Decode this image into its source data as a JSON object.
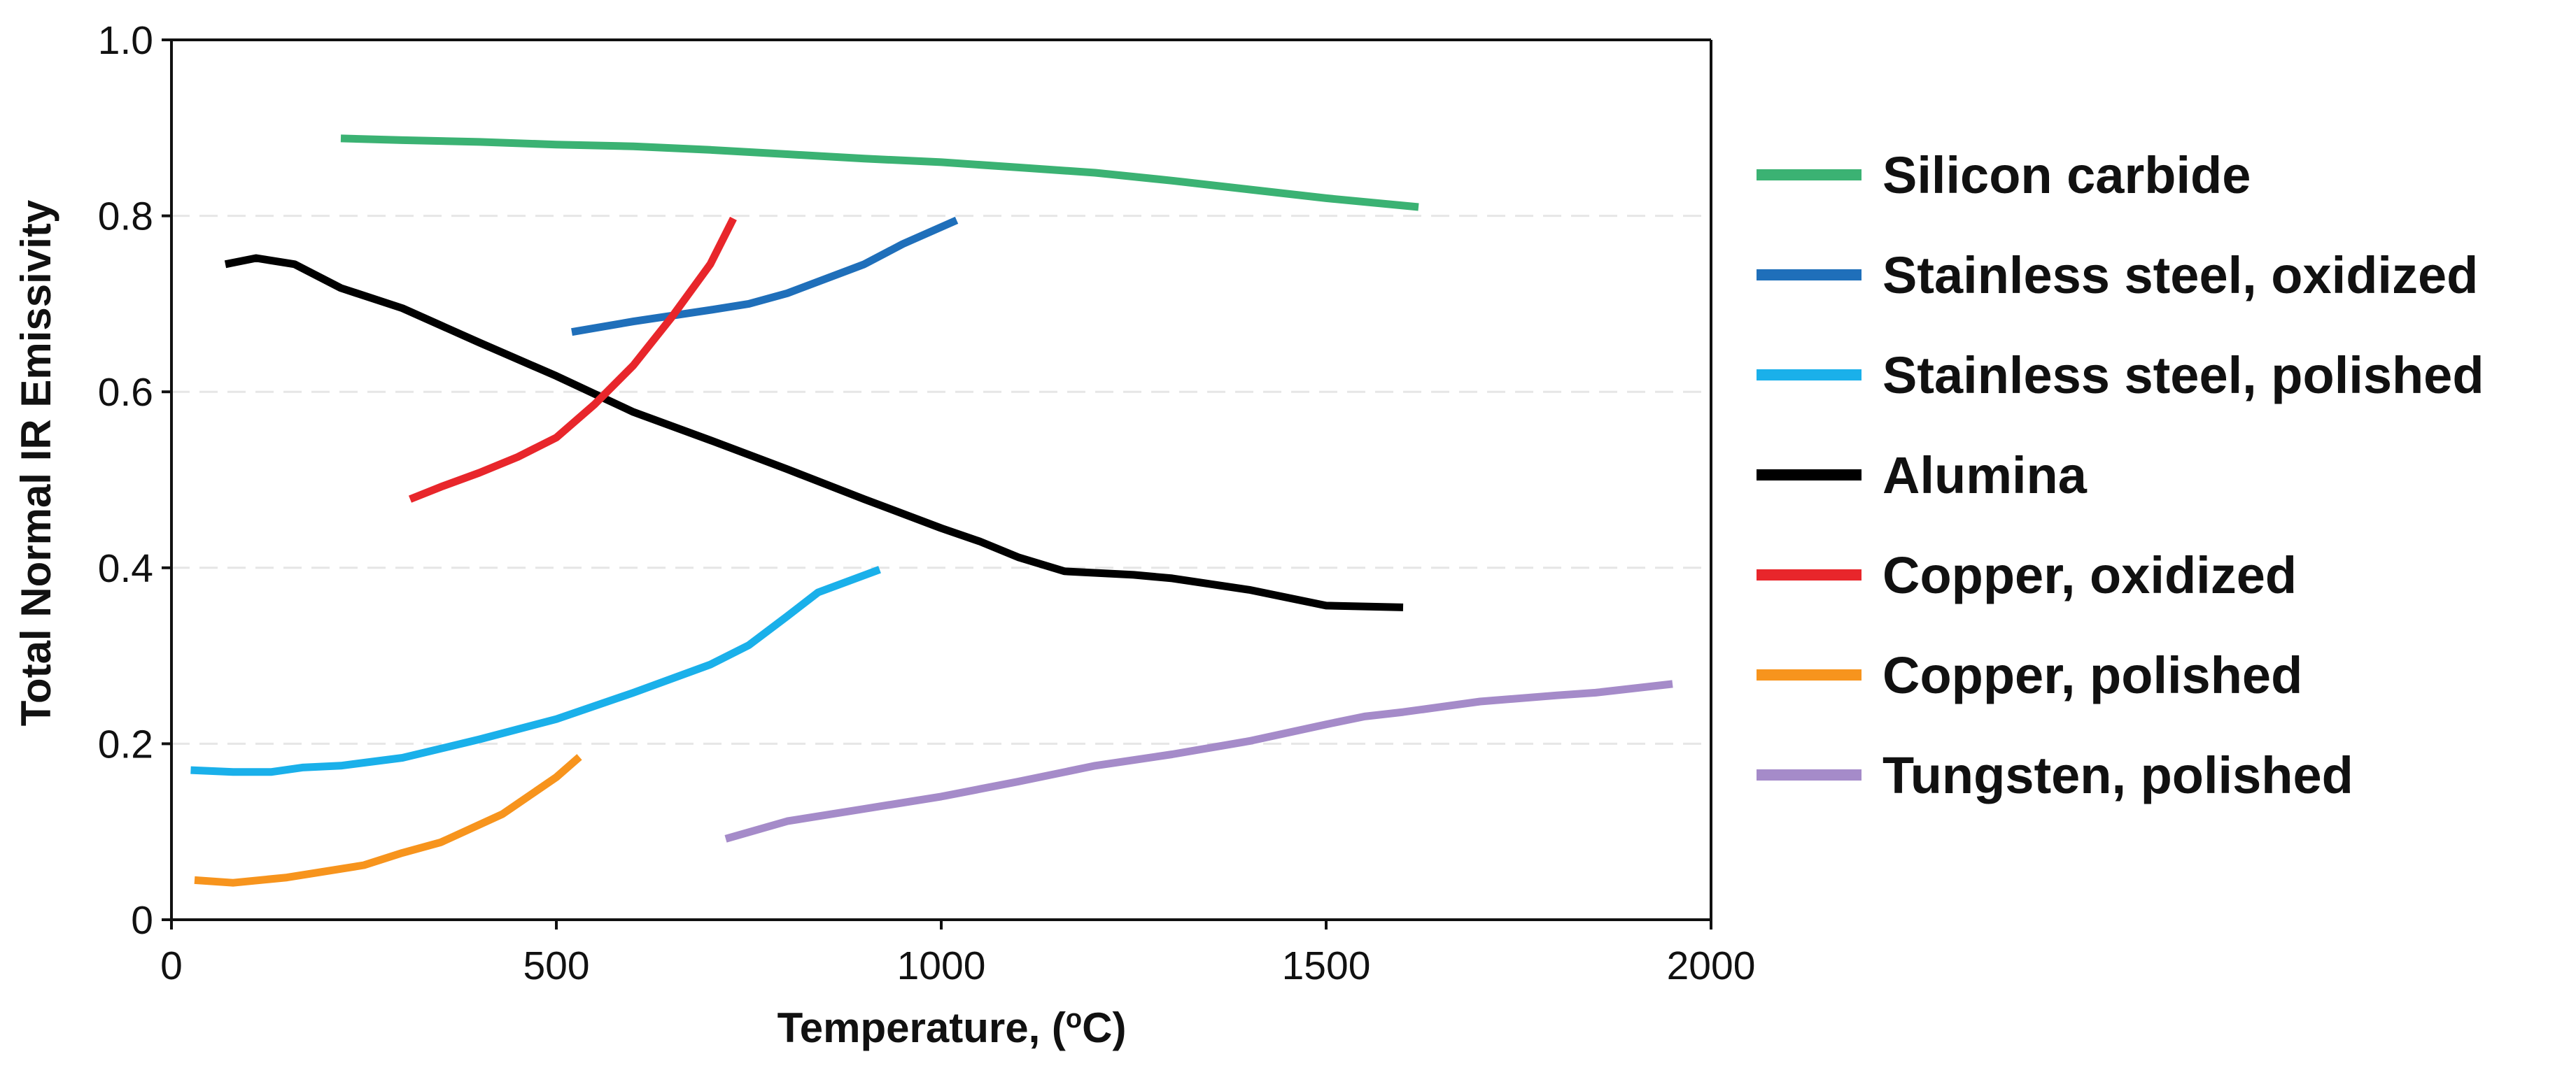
{
  "chart_data": {
    "type": "line",
    "title": "",
    "xlabel": "Temperature, (",
    "xlabel_superscript": "o",
    "xlabel_suffix": "C)",
    "ylabel": "Total Normal IR Emissivity",
    "xlim": [
      0,
      2000
    ],
    "ylim": [
      0,
      1.0
    ],
    "xticks": [
      0,
      500,
      1000,
      1500,
      2000
    ],
    "xtick_labels": [
      "0",
      "500",
      "1000",
      "1500",
      "2000"
    ],
    "yticks": [
      0,
      0.2,
      0.4,
      0.6,
      0.8,
      1.0
    ],
    "ytick_labels": [
      "0",
      "0.2",
      "0.4",
      "0.6",
      "0.8",
      "1.0"
    ],
    "grid": "horizontal dashed",
    "legend_position": "right",
    "series": [
      {
        "name": "Silicon carbide",
        "color": "#3bb273",
        "x": [
          220,
          300,
          400,
          500,
          600,
          700,
          800,
          900,
          1000,
          1100,
          1200,
          1300,
          1400,
          1500,
          1620
        ],
        "y": [
          0.888,
          0.886,
          0.884,
          0.881,
          0.879,
          0.875,
          0.87,
          0.865,
          0.861,
          0.855,
          0.849,
          0.84,
          0.83,
          0.82,
          0.81
        ]
      },
      {
        "name": "Stainless steel, oxidized",
        "color": "#1f6fba",
        "x": [
          520,
          600,
          700,
          750,
          800,
          900,
          950,
          1020
        ],
        "y": [
          0.668,
          0.68,
          0.693,
          0.7,
          0.712,
          0.745,
          0.768,
          0.795
        ]
      },
      {
        "name": "Stainless steel, polished",
        "color": "#1ab0ea",
        "x": [
          25,
          80,
          130,
          170,
          220,
          300,
          400,
          500,
          600,
          700,
          750,
          800,
          840,
          920
        ],
        "y": [
          0.17,
          0.168,
          0.168,
          0.173,
          0.175,
          0.184,
          0.205,
          0.228,
          0.258,
          0.29,
          0.312,
          0.345,
          0.372,
          0.398
        ]
      },
      {
        "name": "Alumina",
        "color": "#000000",
        "x": [
          70,
          110,
          160,
          220,
          300,
          400,
          500,
          600,
          700,
          800,
          900,
          1000,
          1050,
          1100,
          1160,
          1250,
          1300,
          1400,
          1500,
          1600
        ],
        "y": [
          0.745,
          0.752,
          0.745,
          0.718,
          0.695,
          0.656,
          0.618,
          0.577,
          0.545,
          0.512,
          0.478,
          0.445,
          0.43,
          0.412,
          0.396,
          0.392,
          0.388,
          0.375,
          0.357,
          0.355
        ]
      },
      {
        "name": "Copper, oxidized",
        "color": "#e8262b",
        "x": [
          310,
          350,
          400,
          450,
          500,
          550,
          600,
          650,
          700,
          730
        ],
        "y": [
          0.478,
          0.492,
          0.508,
          0.526,
          0.548,
          0.586,
          0.63,
          0.685,
          0.745,
          0.797
        ]
      },
      {
        "name": "Copper, polished",
        "color": "#f7941d",
        "x": [
          30,
          80,
          150,
          250,
          300,
          350,
          430,
          500,
          530
        ],
        "y": [
          0.045,
          0.042,
          0.048,
          0.062,
          0.076,
          0.088,
          0.12,
          0.162,
          0.185
        ]
      },
      {
        "name": "Tungsten, polished",
        "color": "#a58bc9",
        "x": [
          720,
          800,
          900,
          1000,
          1100,
          1200,
          1300,
          1400,
          1500,
          1550,
          1600,
          1700,
          1800,
          1850,
          1950
        ],
        "y": [
          0.092,
          0.112,
          0.126,
          0.14,
          0.157,
          0.175,
          0.188,
          0.203,
          0.222,
          0.231,
          0.236,
          0.248,
          0.255,
          0.258,
          0.268
        ]
      }
    ]
  }
}
